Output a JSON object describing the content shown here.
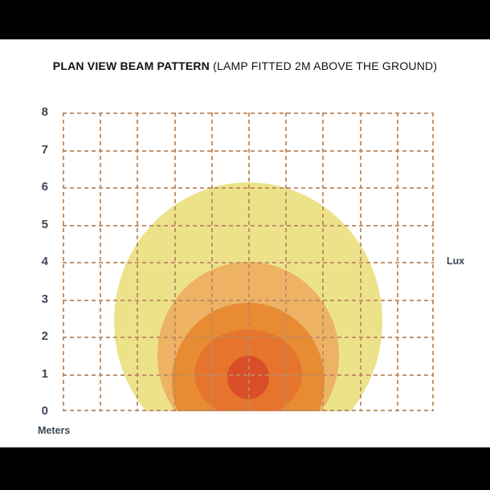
{
  "title": {
    "main": "PLAN VIEW BEAM PATTERN",
    "suffix": " (LAMP FITTED 2M ABOVE THE GROUND)"
  },
  "axes": {
    "y_ticks": [
      "8",
      "7",
      "6",
      "5",
      "4",
      "3",
      "2",
      "1",
      "0"
    ],
    "y_unit_label": "Meters",
    "right_unit_label": "Lux"
  },
  "chart_data": {
    "type": "area",
    "title": "PLAN VIEW BEAM PATTERN (LAMP FITTED 2M ABOVE THE GROUND)",
    "description": "Isolux beam-pattern contours on a plan-view grid; nested intensity zones from outer low-lux pale yellow to inner high-lux red, clipped at ground line 0.",
    "xlabel": "Meters",
    "ylabel_right": "Lux",
    "x_range_m": [
      0,
      10
    ],
    "y_range_m": [
      0,
      8
    ],
    "grid": {
      "x_lines": 11,
      "y_lines": 9,
      "style": "dashed",
      "dash_color": "#bd8a62"
    },
    "tick_color": "#3d4855",
    "rings": [
      {
        "name": "zone-1-lowest-lux",
        "color": "#ece28a",
        "cx_m": 5.0,
        "cy_m": 2.4,
        "rx_m": 3.62,
        "ry_m": 3.72
      },
      {
        "name": "zone-2",
        "color": "#edb264",
        "cx_m": 5.0,
        "cy_m": 1.5,
        "rx_m": 2.45,
        "ry_m": 2.5
      },
      {
        "name": "zone-3",
        "color": "#e88c33",
        "cx_m": 5.0,
        "cy_m": 0.8,
        "rx_m": 2.05,
        "ry_m": 2.1
      },
      {
        "name": "zone-4",
        "color": "#e7742d",
        "cx_m": 5.0,
        "cy_m": 1.0,
        "rx_m": 1.46,
        "ry_m": 1.2
      },
      {
        "name": "zone-5-highest-lux",
        "color": "#d94d28",
        "cx_m": 5.0,
        "cy_m": 0.9,
        "rx_m": 0.57,
        "ry_m": 0.58
      }
    ]
  }
}
